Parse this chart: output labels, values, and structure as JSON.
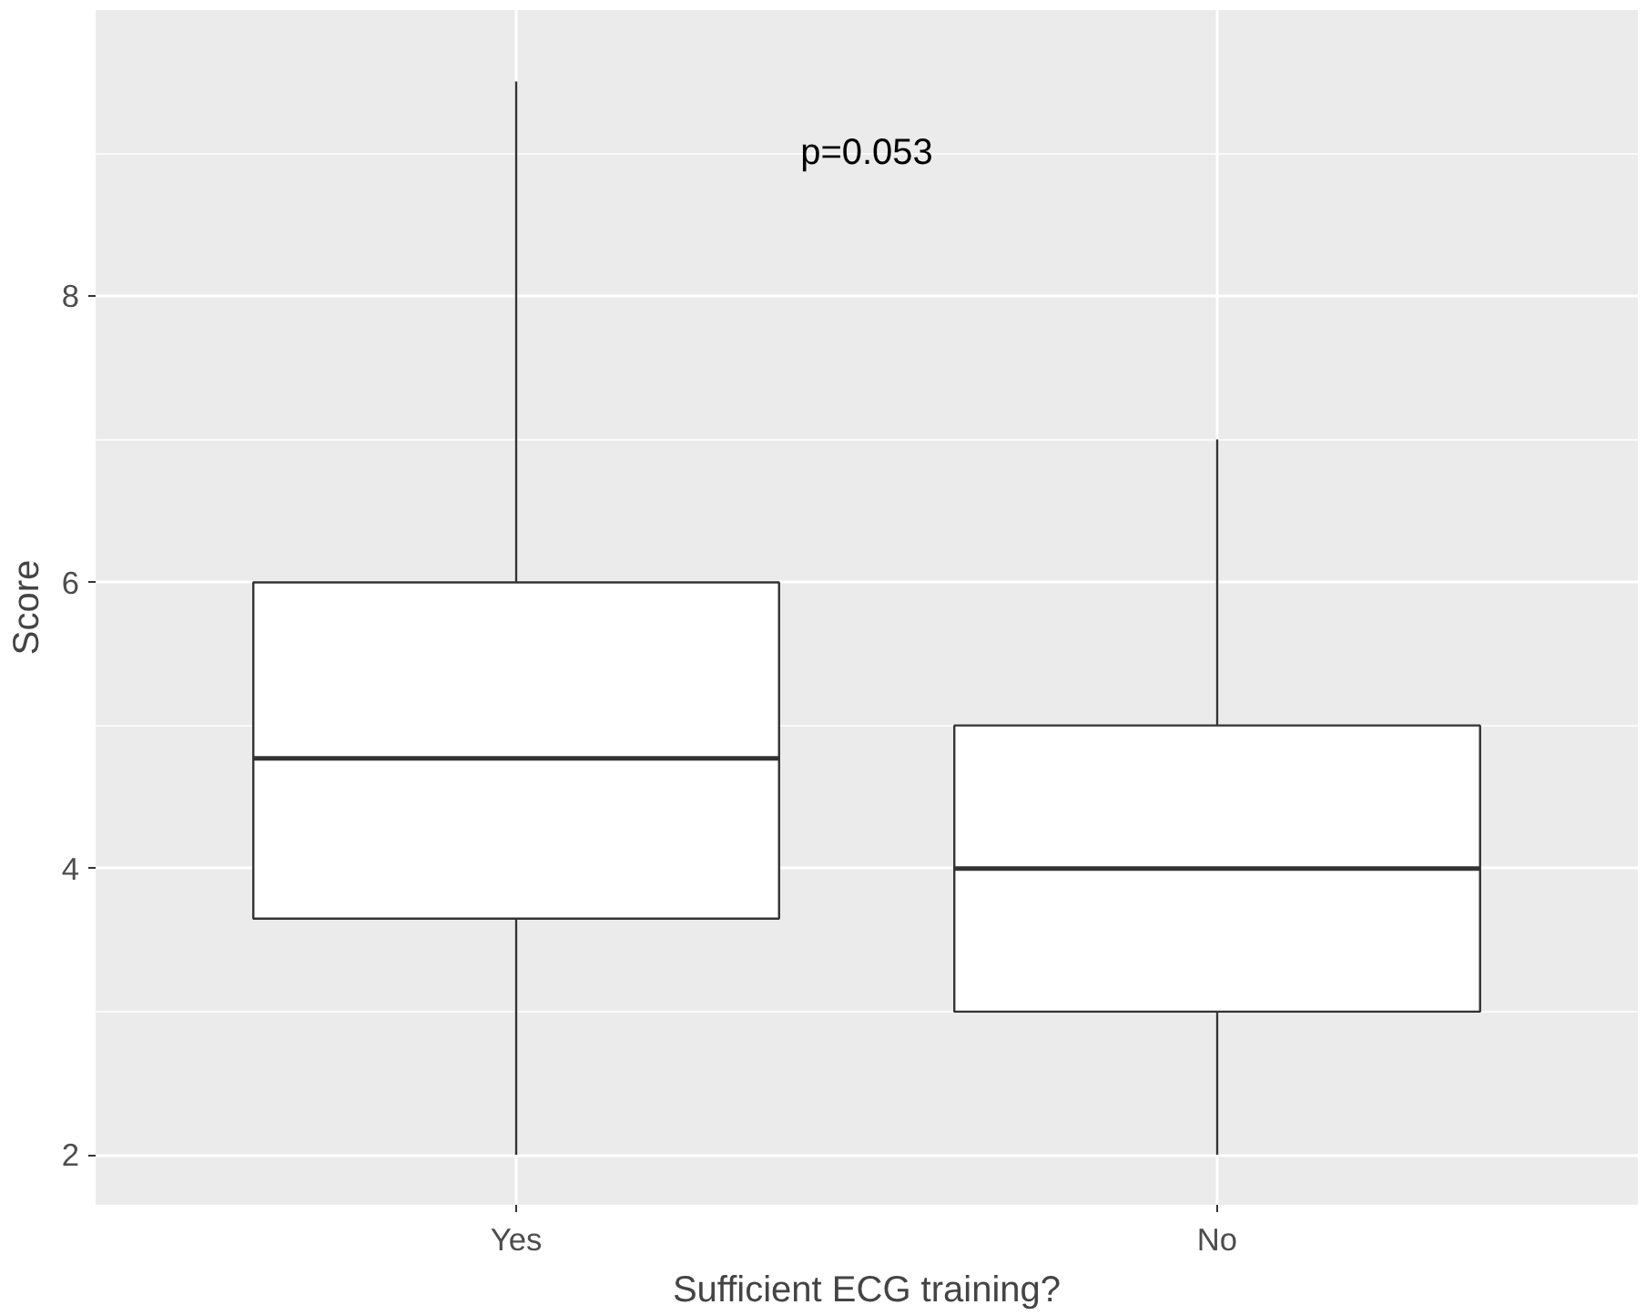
{
  "chart_data": {
    "type": "box",
    "xlabel": "Sufficient ECG training?",
    "ylabel": "Score",
    "categories": [
      "Yes",
      "No"
    ],
    "boxes": [
      {
        "low": 2,
        "q1": 3.65,
        "median": 4.77,
        "q3": 6,
        "high": 9.5
      },
      {
        "low": 2,
        "q1": 3,
        "median": 4,
        "q3": 5,
        "high": 7
      }
    ],
    "ylim": [
      1.65,
      10.0
    ],
    "yticks": [
      2,
      4,
      6,
      8
    ],
    "grid": true,
    "annotations": [
      "p=0.053"
    ]
  }
}
